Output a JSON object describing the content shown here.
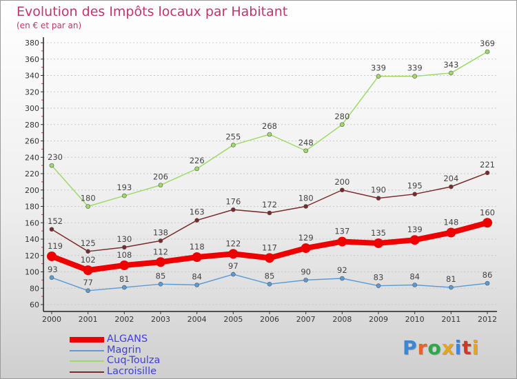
{
  "header": {
    "title": "Evolution des Impôts locaux par Habitant",
    "subtitle": "(en € et par an)"
  },
  "logo": {
    "text": "Proxiti",
    "colors": [
      "#3a86d8",
      "#e8622c",
      "#2aa84a",
      "#e8a51c",
      "#3a86d8",
      "#d8342c",
      "#e8a51c"
    ]
  },
  "chart_data": {
    "type": "line",
    "x": [
      "2000",
      "2001",
      "2002",
      "2003",
      "2004",
      "2005",
      "2006",
      "2007",
      "2008",
      "2009",
      "2010",
      "2011",
      "2012"
    ],
    "ylim": [
      60,
      380
    ],
    "yticks": [
      60,
      80,
      100,
      120,
      140,
      160,
      180,
      200,
      220,
      240,
      260,
      280,
      300,
      320,
      340,
      360,
      380
    ],
    "grid": "horizontal dotted",
    "legend_position": "bottom-left",
    "series": [
      {
        "name": "ALGANS",
        "color": "#ee0000",
        "width": 8,
        "marker": 7,
        "values": [
          119,
          102,
          108,
          112,
          118,
          122,
          117,
          129,
          137,
          135,
          139,
          148,
          160
        ]
      },
      {
        "name": "Magrin",
        "color": "#5b9bd5",
        "width": 1.5,
        "marker": 3,
        "values": [
          93,
          77,
          81,
          85,
          84,
          97,
          85,
          90,
          92,
          83,
          84,
          81,
          86
        ]
      },
      {
        "name": "Cuq-Toulza",
        "color": "#9ed96a",
        "width": 1.5,
        "marker": 3,
        "values": [
          230,
          180,
          193,
          206,
          226,
          255,
          268,
          248,
          280,
          339,
          339,
          343,
          369
        ]
      },
      {
        "name": "Lacroisille",
        "color": "#7a2a2a",
        "width": 1.5,
        "marker": 3,
        "values": [
          152,
          125,
          130,
          138,
          163,
          176,
          172,
          180,
          200,
          190,
          195,
          204,
          221
        ]
      }
    ]
  }
}
